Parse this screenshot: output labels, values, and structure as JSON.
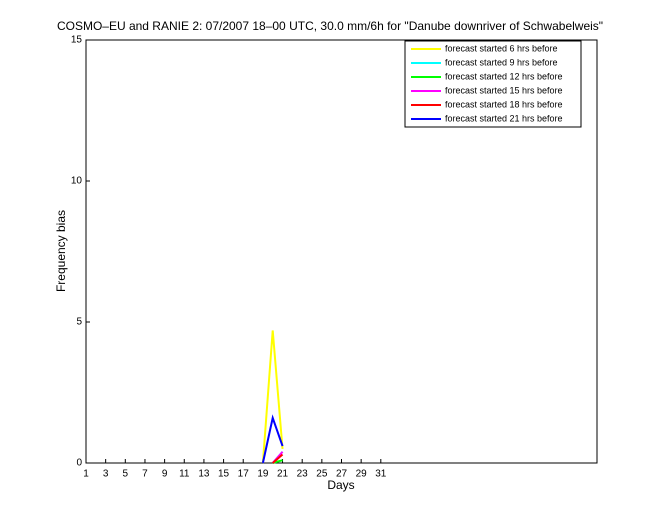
{
  "chart_data": {
    "type": "line",
    "title": "COSMO–EU and RANIE 2: 07/2007 18–00 UTC, 30.0 mm/6h for \"Danube downriver of Schwabelweis\"",
    "x_label": "Days",
    "y_label": "Frequency bias",
    "x": [
      19,
      20,
      21
    ],
    "series": [
      {
        "name": "forecast started 6 hrs before",
        "color": "#ffff00",
        "values": [
          0,
          4.7,
          0.5
        ]
      },
      {
        "name": "forecast started 9 hrs before",
        "color": "#00ffff",
        "values": [
          null,
          0,
          0.4
        ]
      },
      {
        "name": "forecast started 12 hrs before",
        "color": "#00ff00",
        "values": [
          null,
          0,
          0.1
        ]
      },
      {
        "name": "forecast started 15 hrs before",
        "color": "#ff00ff",
        "values": [
          null,
          0,
          0.4
        ]
      },
      {
        "name": "forecast started 18 hrs before",
        "color": "#ff0000",
        "values": [
          null,
          0,
          0.3
        ]
      },
      {
        "name": "forecast started 21 hrs before",
        "color": "#0000ff",
        "values": [
          0,
          1.6,
          0.6
        ]
      }
    ],
    "xlim": [
      1,
      53
    ],
    "xticks": [
      1,
      3,
      5,
      7,
      9,
      11,
      13,
      15,
      17,
      19,
      21,
      23,
      25,
      27,
      29,
      31
    ],
    "ylim": [
      0,
      15
    ],
    "yticks": [
      0,
      5,
      10,
      15
    ],
    "legend": "upper right"
  }
}
